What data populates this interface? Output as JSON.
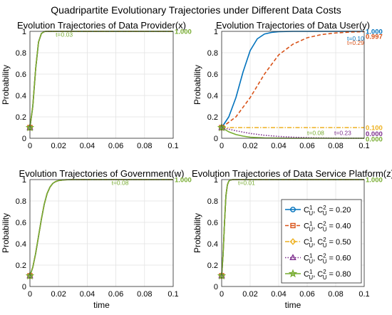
{
  "chart_data": {
    "title": "Quadripartite Evolutionary Trajectories under Different Data Costs",
    "type": "line",
    "x_domain": [
      0,
      0.1
    ],
    "y_domain": [
      0,
      1
    ],
    "x_ticks": [
      "0",
      "0.02",
      "0.04",
      "0.06",
      "0.08",
      "0.1"
    ],
    "y_ticks": [
      "0",
      "0.2",
      "0.4",
      "0.6",
      "0.8",
      "1"
    ],
    "legend": {
      "placement": "lower-right of bottom-right panel",
      "entries": [
        {
          "key": "s1",
          "label": "C_U^1, C_U^2 = 0.20",
          "color": "#0072BD",
          "dash": "solid",
          "marker": "circle"
        },
        {
          "key": "s2",
          "label": "C_U^1, C_U^2 = 0.40",
          "color": "#D95319",
          "dash": "dashed",
          "marker": "square"
        },
        {
          "key": "s3",
          "label": "C_U^1, C_U^2 = 0.50",
          "color": "#EDB120",
          "dash": "dashdot",
          "marker": "diamond"
        },
        {
          "key": "s4",
          "label": "C_U^1, C_U^2 = 0.60",
          "color": "#7E2F8E",
          "dash": "dotted",
          "marker": "triangle"
        },
        {
          "key": "s5",
          "label": "C_U^1, C_U^2 = 0.80",
          "color": "#77AC30",
          "dash": "solid",
          "marker": "star"
        }
      ]
    },
    "panels": [
      {
        "title": "Evolution Trajectories of Data Provider(x)",
        "ylabel": "Probability",
        "xlabel": "",
        "series": [
          {
            "key": "s1",
            "x": [
              0,
              0.002,
              0.004,
              0.006,
              0.008,
              0.01,
              0.012,
              0.1
            ],
            "y": [
              0.1,
              0.3,
              0.65,
              0.9,
              0.98,
              0.998,
              1.0,
              1.0
            ]
          },
          {
            "key": "s2",
            "x": [
              0,
              0.002,
              0.004,
              0.006,
              0.008,
              0.01,
              0.012,
              0.1
            ],
            "y": [
              0.1,
              0.3,
              0.65,
              0.9,
              0.98,
              0.998,
              1.0,
              1.0
            ]
          },
          {
            "key": "s3",
            "x": [
              0,
              0.002,
              0.004,
              0.006,
              0.008,
              0.01,
              0.012,
              0.1
            ],
            "y": [
              0.1,
              0.3,
              0.65,
              0.9,
              0.98,
              0.998,
              1.0,
              1.0
            ]
          },
          {
            "key": "s4",
            "x": [
              0,
              0.002,
              0.004,
              0.006,
              0.008,
              0.01,
              0.012,
              0.1
            ],
            "y": [
              0.1,
              0.3,
              0.65,
              0.9,
              0.98,
              0.998,
              1.0,
              1.0
            ]
          },
          {
            "key": "s5",
            "x": [
              0,
              0.002,
              0.004,
              0.006,
              0.008,
              0.01,
              0.012,
              0.1
            ],
            "y": [
              0.1,
              0.3,
              0.65,
              0.9,
              0.98,
              0.998,
              1.0,
              1.0
            ]
          }
        ],
        "annotations": [
          {
            "text": "t=0.03",
            "x": 0.018,
            "y": 0.97,
            "color": "#77AC30"
          }
        ],
        "end_labels": [
          {
            "text": "1.000",
            "y": 1.0,
            "color": "#77AC30"
          }
        ]
      },
      {
        "title": "Evolution Trajectories of Data User(y)",
        "ylabel": "Probability",
        "xlabel": "",
        "series": [
          {
            "key": "s1",
            "x": [
              0,
              0.005,
              0.01,
              0.015,
              0.02,
              0.025,
              0.03,
              0.035,
              0.04,
              0.05,
              0.06,
              0.1
            ],
            "y": [
              0.1,
              0.2,
              0.38,
              0.62,
              0.82,
              0.93,
              0.975,
              0.99,
              0.997,
              1.0,
              1.0,
              1.0
            ]
          },
          {
            "key": "s2",
            "x": [
              0,
              0.01,
              0.02,
              0.03,
              0.04,
              0.05,
              0.06,
              0.07,
              0.08,
              0.09,
              0.1
            ],
            "y": [
              0.1,
              0.2,
              0.38,
              0.6,
              0.78,
              0.88,
              0.94,
              0.97,
              0.985,
              0.993,
              0.997
            ]
          },
          {
            "key": "s3",
            "x": [
              0,
              0.1
            ],
            "y": [
              0.1,
              0.1
            ]
          },
          {
            "key": "s4",
            "x": [
              0,
              0.01,
              0.02,
              0.03,
              0.04,
              0.05,
              0.06,
              0.07,
              0.08,
              0.1
            ],
            "y": [
              0.1,
              0.07,
              0.045,
              0.028,
              0.017,
              0.01,
              0.006,
              0.003,
              0.001,
              0.0
            ]
          },
          {
            "key": "s5",
            "x": [
              0,
              0.005,
              0.01,
              0.015,
              0.02,
              0.03,
              0.04,
              0.05,
              0.06,
              0.1
            ],
            "y": [
              0.1,
              0.06,
              0.035,
              0.02,
              0.01,
              0.003,
              0.001,
              0.0,
              0.0,
              0.0
            ]
          }
        ],
        "annotations": [
          {
            "text": "t=0.10",
            "x": 0.088,
            "y": 0.935,
            "color": "#0072BD"
          },
          {
            "text": "t=0.29",
            "x": 0.088,
            "y": 0.895,
            "color": "#D95319"
          },
          {
            "text": "t=0.08",
            "x": 0.06,
            "y": 0.05,
            "color": "#77AC30"
          },
          {
            "text": "t=0.23",
            "x": 0.079,
            "y": 0.05,
            "color": "#7E2F8E"
          }
        ],
        "end_labels": [
          {
            "text": "1.000",
            "y": 1.0,
            "color": "#0072BD"
          },
          {
            "text": "0.997",
            "y": 0.955,
            "color": "#D95319"
          },
          {
            "text": "0.100",
            "y": 0.1,
            "color": "#EDB120"
          },
          {
            "text": "0.000",
            "y": 0.045,
            "color": "#7E2F8E"
          },
          {
            "text": "0.000",
            "y": -0.005,
            "color": "#77AC30"
          }
        ]
      },
      {
        "title": "Evolution Trajectories of Government(w)",
        "ylabel": "Probability",
        "xlabel": "time",
        "series": [
          {
            "key": "s1",
            "x": [
              0,
              0.002,
              0.004,
              0.006,
              0.008,
              0.01,
              0.012,
              0.014,
              0.016,
              0.018,
              0.02,
              0.024,
              0.03,
              0.1
            ],
            "y": [
              0.1,
              0.18,
              0.31,
              0.47,
              0.63,
              0.77,
              0.87,
              0.93,
              0.965,
              0.982,
              0.991,
              0.998,
              1.0,
              1.0
            ]
          },
          {
            "key": "s2",
            "x": [
              0,
              0.002,
              0.004,
              0.006,
              0.008,
              0.01,
              0.012,
              0.014,
              0.016,
              0.018,
              0.02,
              0.024,
              0.03,
              0.1
            ],
            "y": [
              0.1,
              0.18,
              0.31,
              0.47,
              0.63,
              0.77,
              0.87,
              0.93,
              0.965,
              0.982,
              0.991,
              0.998,
              1.0,
              1.0
            ]
          },
          {
            "key": "s3",
            "x": [
              0,
              0.002,
              0.004,
              0.006,
              0.008,
              0.01,
              0.012,
              0.014,
              0.016,
              0.018,
              0.02,
              0.024,
              0.03,
              0.1
            ],
            "y": [
              0.1,
              0.18,
              0.31,
              0.47,
              0.63,
              0.77,
              0.87,
              0.93,
              0.965,
              0.982,
              0.991,
              0.998,
              1.0,
              1.0
            ]
          },
          {
            "key": "s4",
            "x": [
              0,
              0.002,
              0.004,
              0.006,
              0.008,
              0.01,
              0.012,
              0.014,
              0.016,
              0.018,
              0.02,
              0.024,
              0.03,
              0.1
            ],
            "y": [
              0.1,
              0.18,
              0.31,
              0.47,
              0.63,
              0.77,
              0.87,
              0.93,
              0.965,
              0.982,
              0.991,
              0.998,
              1.0,
              1.0
            ]
          },
          {
            "key": "s5",
            "x": [
              0,
              0.002,
              0.004,
              0.006,
              0.008,
              0.01,
              0.012,
              0.014,
              0.016,
              0.018,
              0.02,
              0.024,
              0.03,
              0.1
            ],
            "y": [
              0.1,
              0.18,
              0.31,
              0.47,
              0.63,
              0.77,
              0.87,
              0.93,
              0.965,
              0.982,
              0.991,
              0.998,
              1.0,
              1.0
            ]
          }
        ],
        "annotations": [
          {
            "text": "t=0.08",
            "x": 0.057,
            "y": 0.97,
            "color": "#77AC30"
          }
        ],
        "end_labels": [
          {
            "text": "1.000",
            "y": 1.0,
            "color": "#77AC30"
          }
        ]
      },
      {
        "title": "Evolution Trajectories of Data Service Platform(z)",
        "ylabel": "Probability",
        "xlabel": "time",
        "series": [
          {
            "key": "s1",
            "x": [
              0,
              0.001,
              0.002,
              0.003,
              0.004,
              0.005,
              0.006,
              0.008,
              0.1
            ],
            "y": [
              0.1,
              0.3,
              0.6,
              0.85,
              0.95,
              0.985,
              0.996,
              1.0,
              1.0
            ]
          },
          {
            "key": "s2",
            "x": [
              0,
              0.001,
              0.002,
              0.003,
              0.004,
              0.005,
              0.006,
              0.008,
              0.1
            ],
            "y": [
              0.1,
              0.3,
              0.6,
              0.85,
              0.95,
              0.985,
              0.996,
              1.0,
              1.0
            ]
          },
          {
            "key": "s3",
            "x": [
              0,
              0.001,
              0.002,
              0.003,
              0.004,
              0.005,
              0.006,
              0.008,
              0.1
            ],
            "y": [
              0.1,
              0.3,
              0.6,
              0.85,
              0.95,
              0.985,
              0.996,
              1.0,
              1.0
            ]
          },
          {
            "key": "s4",
            "x": [
              0,
              0.001,
              0.002,
              0.003,
              0.004,
              0.005,
              0.006,
              0.008,
              0.1
            ],
            "y": [
              0.1,
              0.3,
              0.6,
              0.85,
              0.95,
              0.985,
              0.996,
              1.0,
              1.0
            ]
          },
          {
            "key": "s5",
            "x": [
              0,
              0.001,
              0.002,
              0.003,
              0.004,
              0.005,
              0.006,
              0.008,
              0.1
            ],
            "y": [
              0.1,
              0.3,
              0.6,
              0.85,
              0.95,
              0.985,
              0.996,
              1.0,
              1.0
            ]
          }
        ],
        "annotations": [
          {
            "text": "t=0.01",
            "x": 0.0115,
            "y": 0.97,
            "color": "#77AC30"
          }
        ],
        "end_labels": [
          {
            "text": "1.000",
            "y": 1.0,
            "color": "#77AC30"
          }
        ]
      }
    ]
  }
}
